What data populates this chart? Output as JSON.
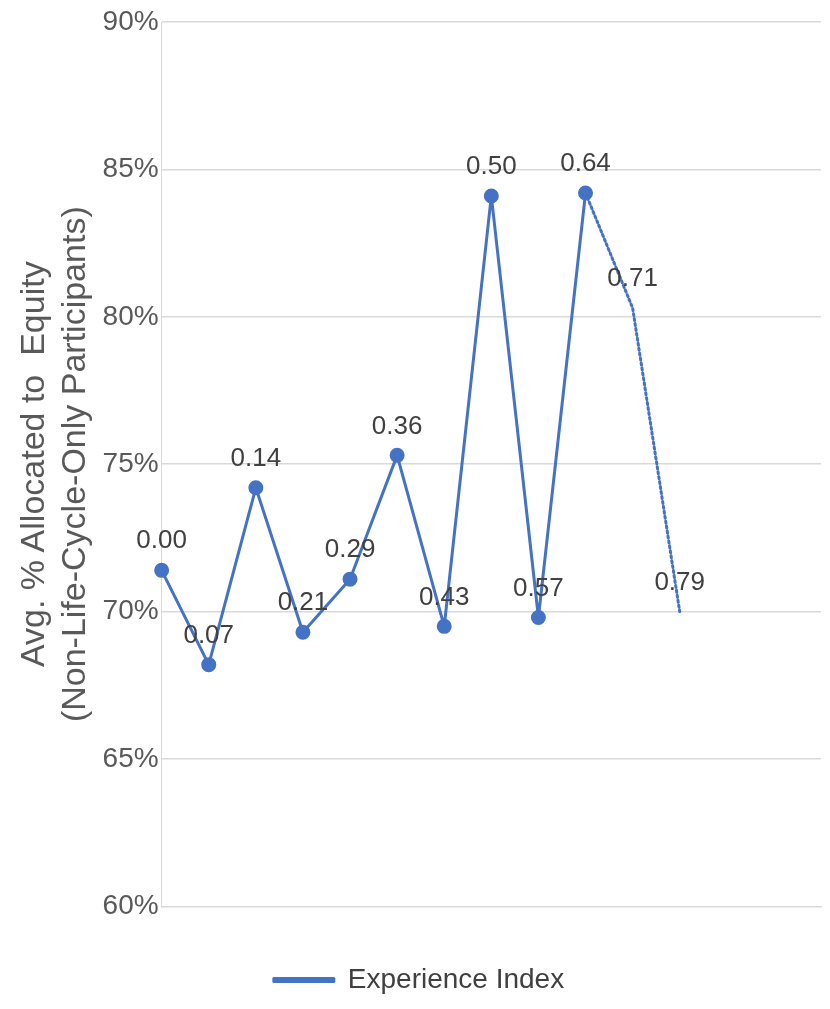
{
  "chart_data": {
    "type": "line",
    "ylabel": "Avg. % Allocated to  Equity\n(Non-Life-Cycle-Only Participants)",
    "categories": [
      null,
      null,
      null,
      null,
      null,
      null,
      null,
      null,
      null,
      null,
      null,
      null,
      null,
      null,
      null
    ],
    "ylim": [
      60,
      90
    ],
    "yticks": [
      {
        "value": 60,
        "label": "60%"
      },
      {
        "value": 65,
        "label": "65%"
      },
      {
        "value": 70,
        "label": "70%"
      },
      {
        "value": 75,
        "label": "75%"
      },
      {
        "value": 80,
        "label": "80%"
      },
      {
        "value": 85,
        "label": "85%"
      },
      {
        "value": 90,
        "label": "90%"
      }
    ],
    "grid": "y",
    "legend": "bottom",
    "marker": "circle",
    "series": [
      {
        "name": "Experience Index",
        "color": "#4472c4",
        "line_style": "solid",
        "values": [
          71.4,
          68.2,
          74.2,
          69.3,
          71.1,
          75.3,
          69.5,
          84.1,
          69.8,
          84.2,
          null,
          null,
          null,
          null,
          null
        ]
      },
      {
        "color": "#4472c4",
        "line_style": "dotted",
        "marker": "none",
        "values": [
          null,
          null,
          null,
          null,
          null,
          null,
          null,
          null,
          null,
          84.2,
          80.3,
          70.0,
          null,
          null,
          null
        ]
      }
    ],
    "annotations": [
      {
        "text": "0.00",
        "y": 71.4
      },
      {
        "text": "0.07",
        "y": 68.2
      },
      {
        "text": "0.14",
        "y": 74.2
      },
      {
        "text": "0.21",
        "y": 69.3
      },
      {
        "text": "0.29",
        "y": 71.1
      },
      {
        "text": "0.36",
        "y": 75.3
      },
      {
        "text": "0.43",
        "y": 69.5
      },
      {
        "text": "0.50",
        "y": 84.1
      },
      {
        "text": "0.57",
        "y": 69.8
      },
      {
        "text": "0.64",
        "y": 84.2
      },
      {
        "text": "0.71",
        "y": 80.3
      },
      {
        "text": "0.79",
        "y": 70.0
      }
    ]
  }
}
